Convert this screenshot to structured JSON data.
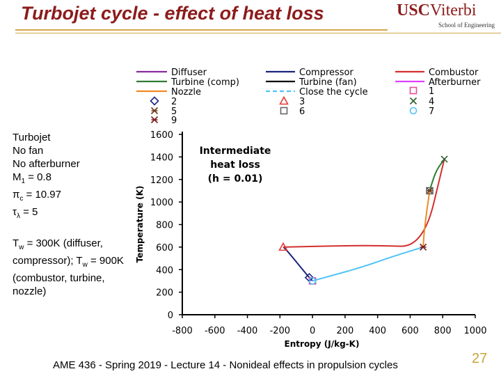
{
  "slide": {
    "title": "Turbojet cycle - effect of heat loss",
    "footer": "AME 436 - Spring 2019 - Lecture 14 - Nonideal effects in propulsion cycles",
    "page_number": "27"
  },
  "logo": {
    "usc": "USC",
    "viterbi": "Viterbi",
    "sub": "School of Engineering"
  },
  "left_text": {
    "l1": "Turbojet",
    "l2": "No fan",
    "l3": "No afterburner",
    "mach_sym": "M",
    "mach_sub": "1",
    "mach_val": " = 0.8",
    "pic_sym": "π",
    "pic_sub": "c",
    "pic_val": " = 10.97",
    "tau_sym": "τ",
    "tau_sub": "λ",
    "tau_val": " = 5",
    "tw_sym": "T",
    "tw_sub": "w",
    "tw_text1": " = 300K (diffuser, compressor); T",
    "tw_sub2": "w",
    "tw_text2": " = 900K (combustor, turbine, nozzle)"
  },
  "chart_data": {
    "type": "line",
    "xlabel": "Entropy (J/kg-K)",
    "ylabel": "Temperature (K)",
    "xlim": [
      -800,
      1000
    ],
    "ylim": [
      0,
      1600
    ],
    "xticks": [
      "-800",
      "-600",
      "-400",
      "-200",
      "0",
      "200",
      "400",
      "600",
      "800",
      "1000"
    ],
    "yticks": [
      "0",
      "200",
      "400",
      "600",
      "800",
      "1000",
      "1200",
      "1400",
      "1600"
    ],
    "annotation": [
      "Intermediate",
      "heat loss",
      "(h = 0.01)"
    ],
    "legend_placement": "top",
    "legend": [
      {
        "key": "diffuser",
        "label": "Diffuser",
        "kind": "line",
        "color": "#8a2aa0"
      },
      {
        "key": "compressor",
        "label": "Compressor",
        "kind": "line",
        "color": "#1a237e"
      },
      {
        "key": "combustor",
        "label": "Combustor",
        "kind": "line",
        "color": "#d32f2f"
      },
      {
        "key": "turbine_comp",
        "label": "Turbine (comp)",
        "kind": "line",
        "color": "#2e7d32"
      },
      {
        "key": "turbine_fan",
        "label": "Turbine (fan)",
        "kind": "line",
        "color": "#000000"
      },
      {
        "key": "afterburner",
        "label": "Afterburner",
        "kind": "line",
        "color": "#e040fb"
      },
      {
        "key": "nozzle",
        "label": "Nozzle",
        "kind": "line",
        "color": "#ef8a24"
      },
      {
        "key": "close",
        "label": "Close the cycle",
        "kind": "dash",
        "color": "#4fc3f7"
      },
      {
        "key": "p1",
        "label": "1",
        "kind": "square",
        "color": "#e64a9a"
      },
      {
        "key": "p2",
        "label": "2",
        "kind": "diamond",
        "color": "#1a237e"
      },
      {
        "key": "p3",
        "label": "3",
        "kind": "triangle",
        "color": "#e53935"
      },
      {
        "key": "p4",
        "label": "4",
        "kind": "x",
        "color": "#2e5e2e"
      },
      {
        "key": "p5",
        "label": "5",
        "kind": "asterisk",
        "color": "#6d3b1e"
      },
      {
        "key": "p6",
        "label": "6",
        "kind": "square",
        "color": "#666666"
      },
      {
        "key": "p7",
        "label": "7",
        "kind": "circle",
        "color": "#4fc3f7"
      },
      {
        "key": "p9",
        "label": "9",
        "kind": "asterisk",
        "color": "#7b1f1f"
      }
    ],
    "series": [
      {
        "key": "diffuser",
        "color": "#8a2aa0",
        "x": [
          0,
          -20
        ],
        "y": [
          300,
          330
        ]
      },
      {
        "key": "compressor",
        "color": "#1a237e",
        "x": [
          -20,
          -55,
          -100,
          -140,
          -170,
          -180
        ],
        "y": [
          330,
          390,
          470,
          540,
          590,
          600
        ]
      },
      {
        "key": "combustor",
        "color": "#d32f2f",
        "x": [
          -180,
          100,
          400,
          680,
          810
        ],
        "y": [
          600,
          610,
          615,
          600,
          1380
        ]
      },
      {
        "key": "turbine_comp",
        "color": "#2e7d32",
        "x": [
          810,
          760,
          730,
          720
        ],
        "y": [
          1380,
          1280,
          1150,
          1100
        ]
      },
      {
        "key": "nozzle",
        "color": "#ef8a24",
        "x": [
          720,
          700,
          685,
          680
        ],
        "y": [
          1100,
          900,
          720,
          600
        ]
      },
      {
        "key": "close",
        "color": "#4fc3f7",
        "x": [
          680,
          500,
          300,
          100,
          0
        ],
        "y": [
          600,
          520,
          420,
          340,
          300
        ]
      }
    ],
    "points": [
      {
        "key": "p1",
        "x": 0,
        "y": 300
      },
      {
        "key": "p2",
        "x": -20,
        "y": 330
      },
      {
        "key": "p3",
        "x": -180,
        "y": 600
      },
      {
        "key": "p4",
        "x": 810,
        "y": 1380
      },
      {
        "key": "p5",
        "x": 720,
        "y": 1100
      },
      {
        "key": "p6",
        "x": 720,
        "y": 1100
      },
      {
        "key": "p7",
        "x": 0,
        "y": 300
      },
      {
        "key": "p9",
        "x": 680,
        "y": 600
      }
    ]
  }
}
